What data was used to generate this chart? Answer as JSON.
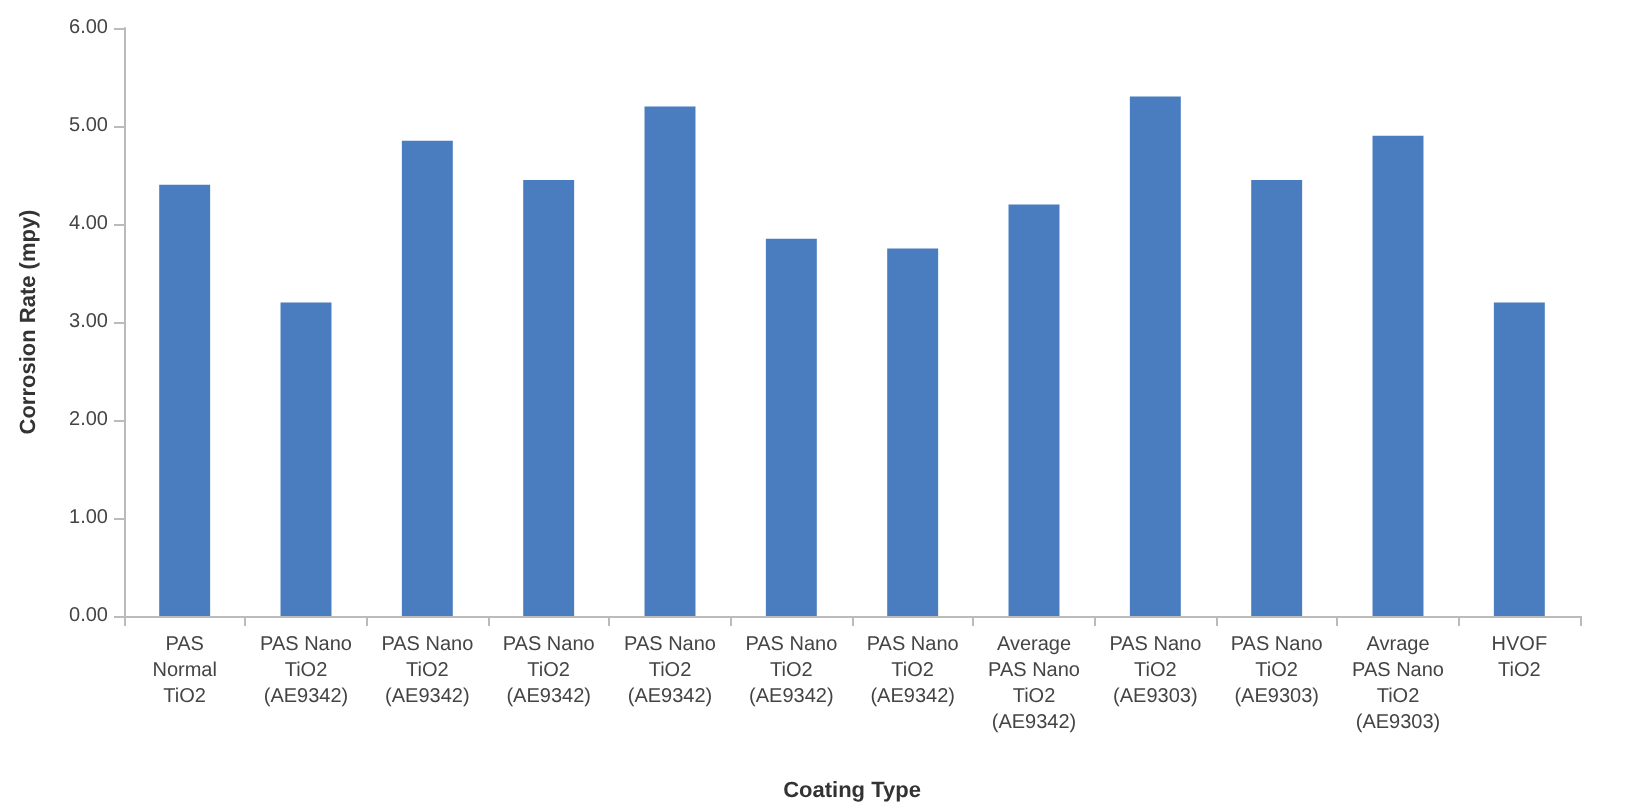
{
  "chart_data": {
    "type": "bar",
    "xlabel": "Coating Type",
    "ylabel": "Corrosion Rate (mpy)",
    "categories": [
      "PAS\nNormal\nTiO2",
      "PAS Nano\nTiO2\n(AE9342)",
      "PAS Nano\nTiO2\n(AE9342)",
      "PAS Nano\nTiO2\n(AE9342)",
      "PAS Nano\nTiO2\n(AE9342)",
      "PAS Nano\nTiO2\n(AE9342)",
      "PAS Nano\nTiO2\n(AE9342)",
      "Average\nPAS Nano\nTiO2\n(AE9342)",
      "PAS Nano\nTiO2\n(AE9303)",
      "PAS Nano\nTiO2\n(AE9303)",
      "Avrage\nPAS Nano\nTiO2\n(AE9303)",
      "HVOF\nTiO2"
    ],
    "values": [
      4.4,
      3.2,
      4.85,
      4.45,
      5.2,
      3.85,
      3.75,
      4.2,
      5.3,
      4.45,
      4.9,
      3.2
    ],
    "color": "#4a7dc0",
    "ylim": [
      0,
      6
    ],
    "yticks": [
      {
        "value": 0,
        "label": "0.00"
      },
      {
        "value": 1,
        "label": "1.00"
      },
      {
        "value": 2,
        "label": "2.00"
      },
      {
        "value": 3,
        "label": "3.00"
      },
      {
        "value": 4,
        "label": "4.00"
      },
      {
        "value": 5,
        "label": "5.00"
      },
      {
        "value": 6,
        "label": "6.00"
      }
    ],
    "grid": false
  }
}
